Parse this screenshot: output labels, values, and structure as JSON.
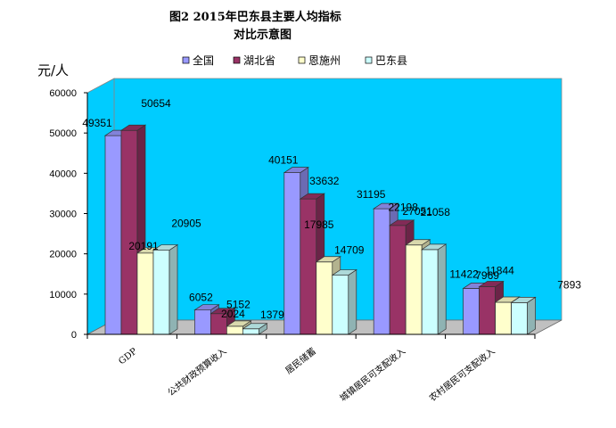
{
  "chart_data": {
    "type": "bar",
    "title_line1": "图2    2015年巴东县主要人均指标",
    "title_line2": "对比示意图",
    "ylabel": "元/人",
    "ylim": [
      0,
      60000
    ],
    "yticks": [
      "0",
      "10000",
      "20000",
      "30000",
      "40000",
      "50000",
      "60000"
    ],
    "categories": [
      "GDP",
      "公共财政预算收入",
      "居民储蓄",
      "城镇居民可支配收入",
      "农村居民可支配收入"
    ],
    "legend_position": "top",
    "series": [
      {
        "name": "全国",
        "color": "#9999ff",
        "values": [
          49351,
          6052,
          40151,
          31195,
          11422
        ]
      },
      {
        "name": "湖北省",
        "color": "#993366",
        "values": [
          50654,
          5152,
          33632,
          27051,
          11844
        ]
      },
      {
        "name": "恩施州",
        "color": "#ffffcc",
        "values": [
          20191,
          2024,
          17985,
          22198,
          7969
        ]
      },
      {
        "name": "巴东县",
        "color": "#ccffff",
        "values": [
          20905,
          1379,
          14709,
          21058,
          7893
        ]
      }
    ],
    "plot_background": "#00ccff",
    "grid": false
  }
}
